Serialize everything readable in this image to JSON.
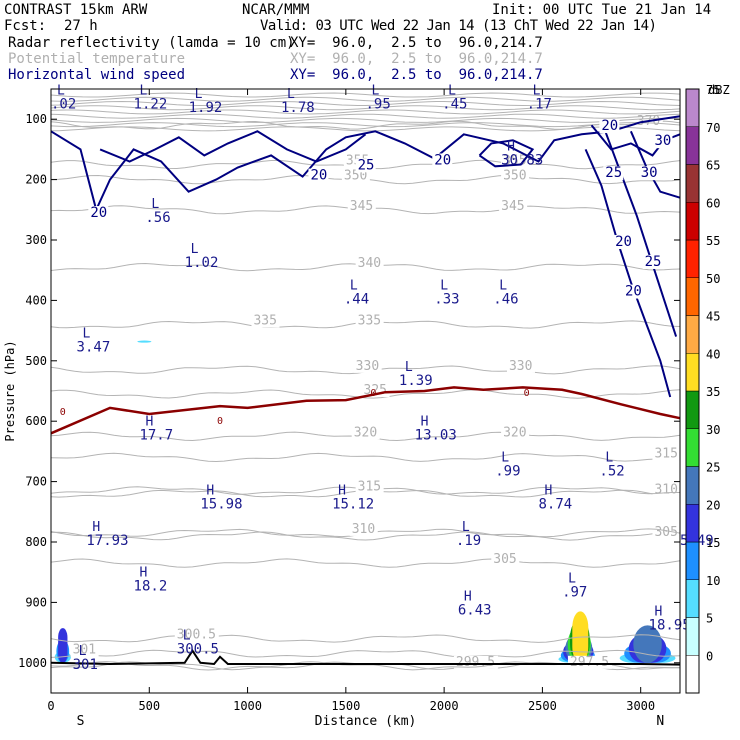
{
  "header": {
    "model": "CONTRAST 15km ARW",
    "source": "NCAR/MMM",
    "init": "Init: 00 UTC Tue 21 Jan 14",
    "fcst_label": "Fcst:",
    "fcst_value": "27 h",
    "valid": "Valid: 03 UTC Wed 22 Jan 14 (13 ChT Wed 22 Jan 14)",
    "fields": [
      {
        "name": "Radar reflectivity (lamda = 10 cm)",
        "xy": "XY=  96.0,  2.5 to  96.0,214.7"
      },
      {
        "name": "Potential temperature",
        "xy": "XY=  96.0,  2.5 to  96.0,214.7"
      },
      {
        "name": "Horizontal wind speed",
        "xy": "XY=  96.0,  2.5 to  96.0,214.7"
      }
    ]
  },
  "chart_data": {
    "type": "heatmap",
    "xlabel": "Distance (km)",
    "ylabel": "Pressure (hPa)",
    "xlim": [
      0,
      3200
    ],
    "ylim": [
      1050,
      50
    ],
    "x_ticks": [
      0,
      500,
      1000,
      1500,
      2000,
      2500,
      3000
    ],
    "y_ticks": [
      100,
      200,
      300,
      400,
      500,
      600,
      700,
      800,
      900,
      1000
    ],
    "x_end_labels": {
      "left": "S",
      "right": "N"
    },
    "colorbar": {
      "title": "dBZ",
      "levels": [
        0,
        5,
        10,
        15,
        20,
        25,
        30,
        35,
        40,
        45,
        50,
        55,
        60,
        65,
        70,
        75
      ],
      "colors": [
        "#ffffff",
        "#c8ffff",
        "#55ddff",
        "#1e90ff",
        "#3333dd",
        "#4477bb",
        "#33dd33",
        "#119911",
        "#ffdd22",
        "#ffaa44",
        "#ff6600",
        "#ff2200",
        "#cc0000",
        "#993333",
        "#883399",
        "#bb88cc"
      ]
    },
    "reflectivity_regions": [
      {
        "x": [
          10,
          110
        ],
        "p": [
          575,
          1000
        ],
        "max_dbz": 20
      },
      {
        "x": [
          420,
          530
        ],
        "p": [
          430,
          470
        ],
        "max_dbz": 10
      },
      {
        "x": [
          2570,
          2780
        ],
        "p": [
          460,
          1000
        ],
        "max_dbz": 40
      },
      {
        "x": [
          2870,
          3200
        ],
        "p": [
          570,
          1000
        ],
        "max_dbz": 25
      }
    ],
    "theta_contours": [
      {
        "label": "300.5",
        "p": 960,
        "labels_at": [
          [
            640,
            960
          ]
        ]
      },
      {
        "label": "301",
        "p": 985,
        "labels_at": [
          [
            110,
            985
          ]
        ]
      },
      {
        "label": "299.5",
        "p": 1005,
        "labels_at": [
          [
            2060,
            1005
          ]
        ]
      },
      {
        "label": "297.5",
        "p": 1005,
        "labels_at": [
          [
            2640,
            1005
          ]
        ]
      },
      {
        "label": "305",
        "p": 835,
        "labels_at": [
          [
            2250,
            835
          ]
        ]
      },
      {
        "label": "305",
        "p": 790,
        "labels_at": [
          [
            3070,
            790
          ]
        ]
      },
      {
        "label": "310",
        "p": 785,
        "labels_at": [
          [
            1530,
            785
          ]
        ]
      },
      {
        "label": "310",
        "p": 720,
        "labels_at": [
          [
            3070,
            720
          ]
        ]
      },
      {
        "label": "315",
        "p": 715,
        "labels_at": [
          [
            1560,
            715
          ]
        ]
      },
      {
        "label": "315",
        "p": 660,
        "labels_at": [
          [
            3070,
            660
          ]
        ]
      },
      {
        "label": "320",
        "p": 625,
        "labels_at": [
          [
            1540,
            625
          ],
          [
            2300,
            625
          ]
        ]
      },
      {
        "label": "325",
        "p": 555,
        "labels_at": [
          [
            1590,
            555
          ]
        ]
      },
      {
        "label": "330",
        "p": 515,
        "labels_at": [
          [
            1550,
            515
          ],
          [
            2330,
            515
          ]
        ]
      },
      {
        "label": "335",
        "p": 440,
        "labels_at": [
          [
            1030,
            440
          ],
          [
            1560,
            440
          ]
        ]
      },
      {
        "label": "340",
        "p": 345,
        "labels_at": [
          [
            1560,
            345
          ]
        ]
      },
      {
        "label": "345",
        "p": 250,
        "labels_at": [
          [
            1520,
            250
          ],
          [
            2290,
            250
          ]
        ]
      },
      {
        "label": "350",
        "p": 200,
        "labels_at": [
          [
            1490,
            200
          ],
          [
            2300,
            200
          ]
        ]
      },
      {
        "label": "355",
        "p": 175,
        "labels_at": [
          [
            1500,
            175
          ],
          [
            2300,
            175
          ]
        ]
      },
      {
        "label": "370",
        "p": 110,
        "labels_at": [
          [
            2980,
            110
          ]
        ]
      }
    ],
    "freezing_level_label": "0",
    "freezing_level": {
      "x": [
        0,
        300,
        500,
        860,
        1000,
        1300,
        1500,
        1700,
        1900,
        2050,
        2200,
        2400,
        2600,
        2700,
        2900,
        3100,
        3200
      ],
      "p": [
        620,
        578,
        588,
        575,
        578,
        566,
        565,
        552,
        550,
        544,
        548,
        544,
        548,
        555,
        572,
        588,
        595
      ]
    },
    "wind_contours": [
      {
        "label": "20",
        "labels_at": [
          [
            200,
            262
          ],
          [
            1320,
            200
          ],
          [
            1950,
            175
          ],
          [
            2800,
            118
          ],
          [
            2870,
            310
          ],
          [
            2920,
            392
          ]
        ]
      },
      {
        "label": "25",
        "labels_at": [
          [
            1560,
            183
          ],
          [
            2820,
            196
          ],
          [
            3020,
            343
          ]
        ]
      },
      {
        "label": "30",
        "labels_at": [
          [
            3000,
            196
          ],
          [
            3070,
            143
          ]
        ]
      }
    ],
    "extrema": [
      {
        "type": "L",
        "value": ".02",
        "x": 0,
        "p": 72
      },
      {
        "type": "L",
        "value": "1.22",
        "x": 420,
        "p": 72
      },
      {
        "type": "L",
        "value": "1.92",
        "x": 700,
        "p": 78
      },
      {
        "type": "L",
        "value": "1.78",
        "x": 1170,
        "p": 78
      },
      {
        "type": "L",
        "value": ".95",
        "x": 1600,
        "p": 72
      },
      {
        "type": "L",
        "value": ".45",
        "x": 1990,
        "p": 72
      },
      {
        "type": "L",
        "value": ".17",
        "x": 2420,
        "p": 72
      },
      {
        "type": "H",
        "value": "30.83",
        "x": 2290,
        "p": 165
      },
      {
        "type": "L",
        "value": ".56",
        "x": 480,
        "p": 260
      },
      {
        "type": "L",
        "value": "1.02",
        "x": 680,
        "p": 335
      },
      {
        "type": "L",
        "value": ".44",
        "x": 1490,
        "p": 395
      },
      {
        "type": "L",
        "value": ".33",
        "x": 1950,
        "p": 395
      },
      {
        "type": "L",
        "value": ".46",
        "x": 2250,
        "p": 395
      },
      {
        "type": "L",
        "value": "3.47",
        "x": 130,
        "p": 475
      },
      {
        "type": "L",
        "value": "1.39",
        "x": 1770,
        "p": 530
      },
      {
        "type": "H",
        "value": "17.7",
        "x": 450,
        "p": 620
      },
      {
        "type": "H",
        "value": "13.03",
        "x": 1850,
        "p": 620
      },
      {
        "type": "L",
        "value": ".99",
        "x": 2260,
        "p": 680
      },
      {
        "type": "L",
        "value": ".52",
        "x": 2790,
        "p": 680
      },
      {
        "type": "H",
        "value": "15.98",
        "x": 760,
        "p": 735
      },
      {
        "type": "H",
        "value": "15.12",
        "x": 1430,
        "p": 735
      },
      {
        "type": "H",
        "value": "8.74",
        "x": 2480,
        "p": 735
      },
      {
        "type": "H",
        "value": "17.93",
        "x": 180,
        "p": 795
      },
      {
        "type": "L",
        "value": ".19",
        "x": 2060,
        "p": 795
      },
      {
        "type": "L",
        "value": "5.49",
        "x": 3200,
        "p": 795
      },
      {
        "type": "H",
        "value": "18.2",
        "x": 420,
        "p": 870
      },
      {
        "type": "H",
        "value": "6.43",
        "x": 2070,
        "p": 910
      },
      {
        "type": "L",
        "value": ".97",
        "x": 2600,
        "p": 880
      },
      {
        "type": "H",
        "value": "18.95",
        "x": 3040,
        "p": 935
      },
      {
        "type": "L",
        "value": "301",
        "x": 110,
        "p": 1000
      },
      {
        "type": "L",
        "value": "300.5",
        "x": 640,
        "p": 975
      }
    ],
    "terrain": {
      "x": [
        0,
        300,
        680,
        720,
        760,
        830,
        860,
        900,
        1500,
        2000,
        2500,
        2700,
        3000,
        3200
      ],
      "p": [
        1000,
        1002,
        1000,
        980,
        1000,
        1002,
        990,
        1002,
        1002,
        1002,
        1002,
        1002,
        1002,
        1003
      ]
    }
  }
}
